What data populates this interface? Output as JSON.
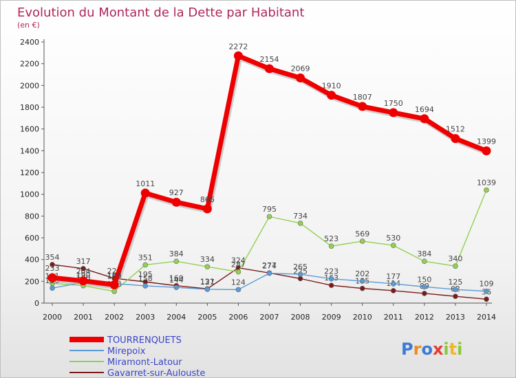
{
  "chart_data": {
    "type": "line",
    "title": "Evolution du Montant de la Dette par Habitant",
    "subtitle": "(en €)",
    "x": [
      "2000",
      "2001",
      "2002",
      "2003",
      "2004",
      "2005",
      "2006",
      "2007",
      "2008",
      "2009",
      "2010",
      "2011",
      "2012",
      "2013",
      "2014"
    ],
    "ylim": [
      0,
      2400
    ],
    "yticks": [
      0,
      200,
      400,
      600,
      800,
      1000,
      1200,
      1400,
      1600,
      1800,
      2000,
      2200,
      2400
    ],
    "grid": false,
    "legend_position": "bottom-left",
    "series": [
      {
        "name": "TOURRENQUETS",
        "color": "#ee0000",
        "values": [
          233,
          204,
          168,
          1011,
          927,
          866,
          2272,
          2154,
          2069,
          1910,
          1807,
          1750,
          1694,
          1512,
          1399
        ],
        "labels": [
          "233",
          "204",
          "168",
          "1011",
          "927",
          "866",
          "2272",
          "2154",
          "2069",
          "1910",
          "1807",
          "1750",
          "1694",
          "1512",
          "1399"
        ]
      },
      {
        "name": "Mirepoix",
        "color": "#5b9bd5",
        "values": [
          138,
          190,
          180,
          158,
          144,
          127,
          124,
          274,
          265,
          223,
          202,
          177,
          150,
          125,
          109
        ],
        "labels": [
          "138",
          "190",
          "180",
          "158",
          "144",
          "127",
          "124",
          "274",
          "265",
          "223",
          "202",
          "177",
          "150",
          "125",
          "109"
        ]
      },
      {
        "name": "Miramont-Latour",
        "color": "#92d050",
        "values": [
          181,
          160,
          108,
          351,
          384,
          334,
          287,
          795,
          734,
          523,
          569,
          530,
          384,
          340,
          1039
        ],
        "labels": [
          "181",
          "160",
          "108",
          "351",
          "384",
          "334",
          "287",
          "795",
          "734",
          "523",
          "569",
          "530",
          "384",
          "340",
          "1039"
        ]
      },
      {
        "name": "Gavarret-sur-Aulouste",
        "color": "#7b1a1a",
        "values": [
          354,
          317,
          228,
          195,
          160,
          131,
          324,
          277,
          225,
          163,
          135,
          114,
          89,
          62,
          36
        ],
        "labels": [
          "354",
          "317",
          "228",
          "195",
          "160",
          "131",
          "324",
          "277",
          "225",
          "163",
          "135",
          "114",
          "89",
          "62",
          "36"
        ]
      }
    ]
  },
  "logo": {
    "text": "Proxiti",
    "letters": [
      "P",
      "r",
      "o",
      "x",
      "i",
      "t",
      "i"
    ],
    "colors": [
      "#3b7bd4",
      "#f08a1c",
      "#3b7bd4",
      "#e53c2e",
      "#8cc63f",
      "#f0b81c",
      "#8cc63f"
    ]
  }
}
